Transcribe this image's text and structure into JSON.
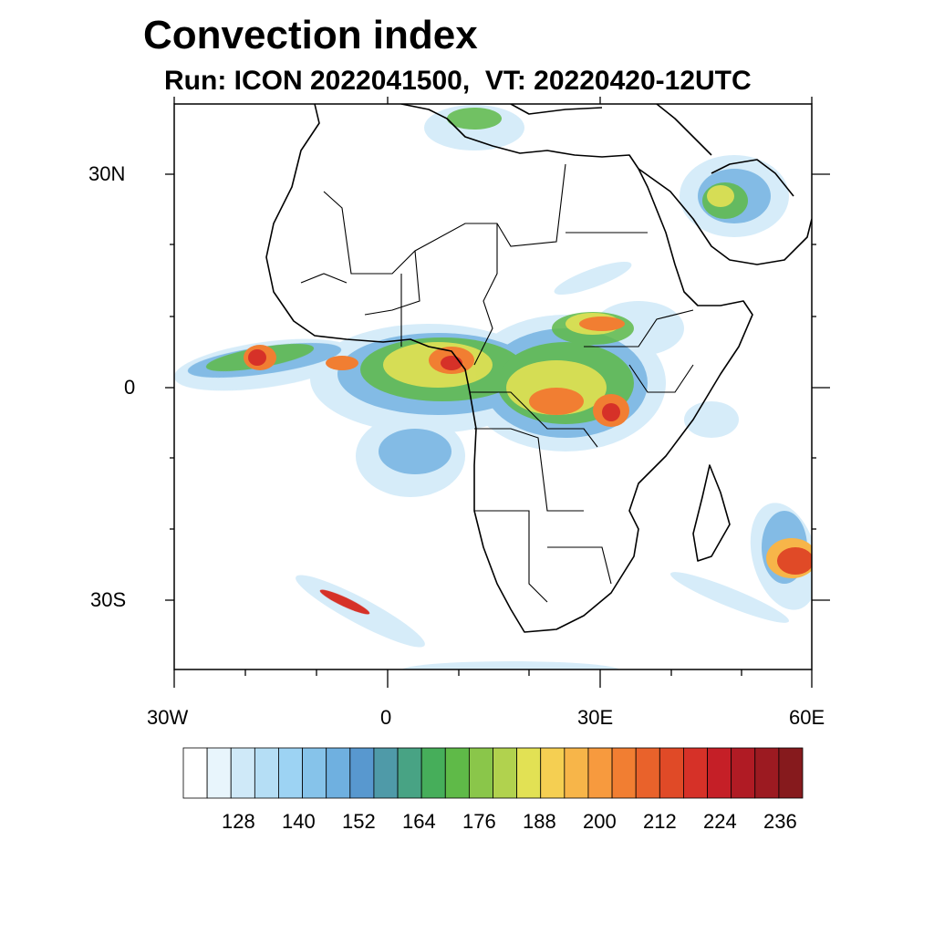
{
  "title": "Convection index",
  "subtitle": "Run: ICON 2022041500,  VT: 20220420-12UTC",
  "map": {
    "lon_range": [
      -30,
      60
    ],
    "lat_range": [
      -40,
      40
    ],
    "lat_labels": [
      "30N",
      "0",
      "30S"
    ],
    "lon_labels": [
      "30W",
      "0",
      "30E",
      "60E"
    ]
  },
  "colorbar": {
    "colors": [
      "#ffffff",
      "#e8f5fc",
      "#cfe9f8",
      "#b5def5",
      "#9dd3f3",
      "#86c3ea",
      "#6fb0e0",
      "#5898cf",
      "#4f9aa8",
      "#48a384",
      "#46ae5a",
      "#5fba48",
      "#8ac64a",
      "#b1d24e",
      "#e2e154",
      "#f5cf52",
      "#f7b549",
      "#f79a3e",
      "#f17e32",
      "#e9622b",
      "#e04a27",
      "#d63128",
      "#c51f27",
      "#b01b24",
      "#9c1a21",
      "#861a1d"
    ],
    "labels": [
      "128",
      "140",
      "152",
      "164",
      "176",
      "188",
      "200",
      "212",
      "224",
      "236"
    ]
  }
}
